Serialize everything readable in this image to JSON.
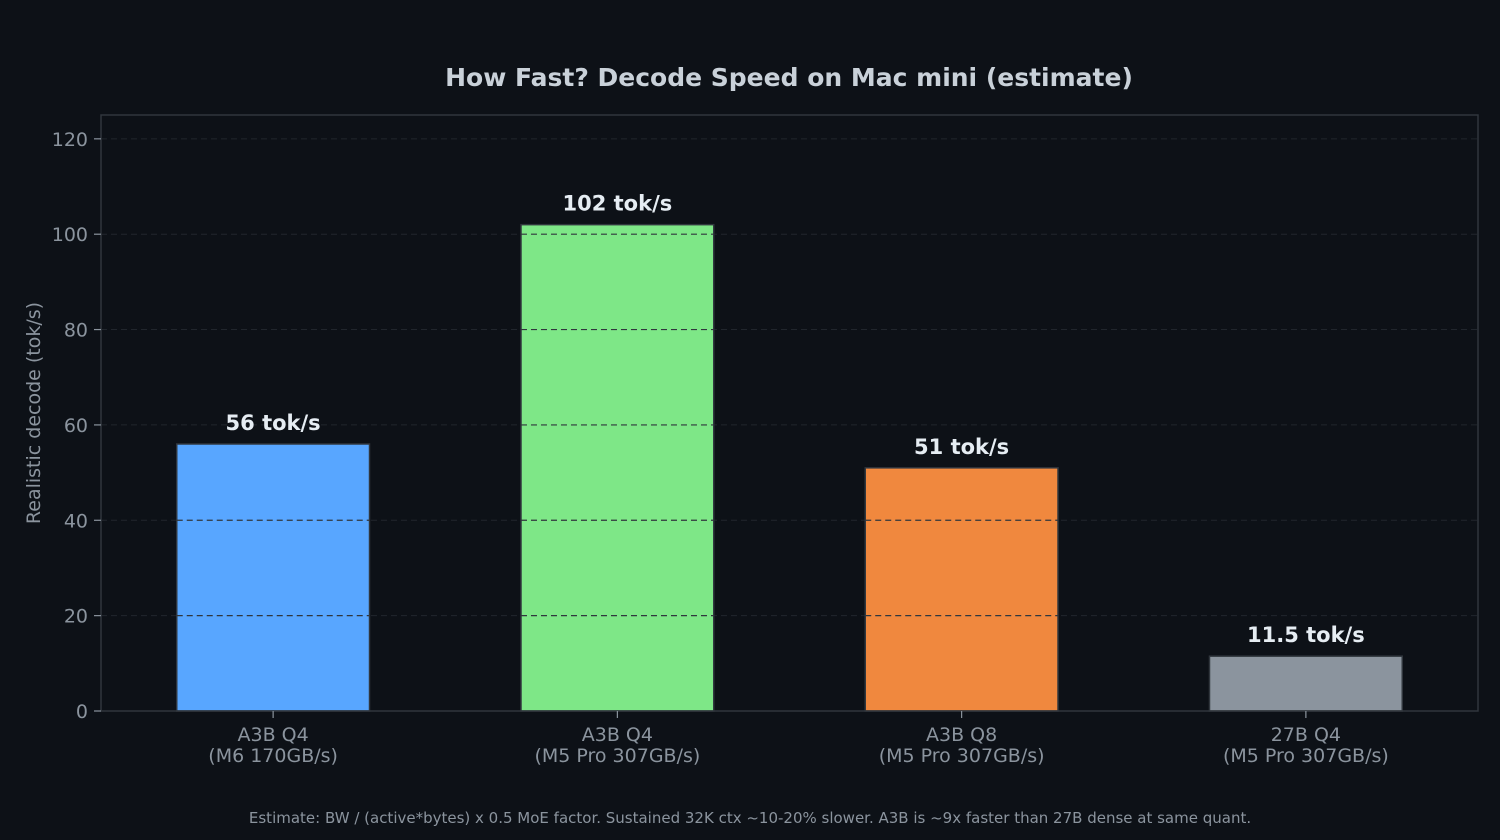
{
  "chart_data": {
    "type": "bar",
    "title": "How Fast? Decode Speed on Mac mini (estimate)",
    "xlabel": "",
    "ylabel": "Realistic decode (tok/s)",
    "ylim": [
      0,
      125
    ],
    "yticks": [
      0,
      20,
      40,
      60,
      80,
      100,
      120
    ],
    "grid": true,
    "categories": [
      [
        "A3B Q4",
        "(M6 170GB/s)"
      ],
      [
        "A3B Q4",
        "(M5 Pro 307GB/s)"
      ],
      [
        "A3B Q8",
        "(M5 Pro 307GB/s)"
      ],
      [
        "27B Q4",
        "(M5 Pro 307GB/s)"
      ]
    ],
    "values": [
      56,
      102,
      51,
      11.5
    ],
    "data_labels": [
      "56 tok/s",
      "102 tok/s",
      "51 tok/s",
      "11.5 tok/s"
    ],
    "colors": [
      "#58a6ff",
      "#7ee787",
      "#f0883e",
      "#8b949e"
    ],
    "footnote": "Estimate: BW / (active*bytes) x 0.5 MoE factor. Sustained 32K ctx ~10-20% slower. A3B is ~9x faster than 27B dense at same quant."
  }
}
